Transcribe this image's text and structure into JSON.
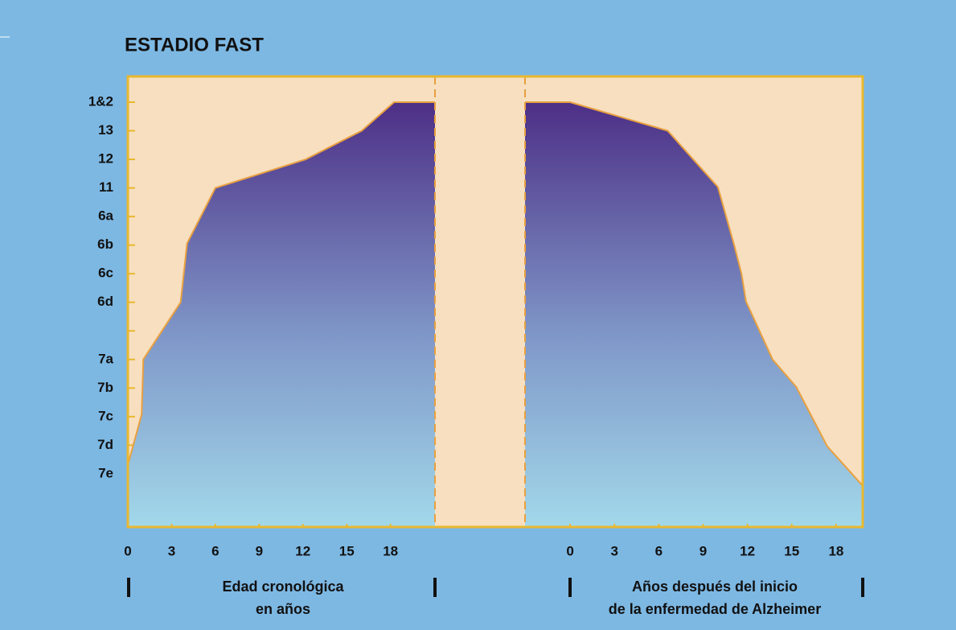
{
  "chart_data": [
    {
      "type": "area",
      "title": "ESTADIO FAST",
      "x": [
        0,
        0.95,
        1.06,
        3.62,
        4.06,
        6,
        12.19,
        16.03,
        18.25,
        21.05
      ],
      "values": [
        1.31,
        3.08,
        5,
        7,
        9.06,
        11,
        12,
        13,
        14,
        14
      ],
      "xlim": [
        0,
        21.05
      ],
      "xticks": [
        0,
        3,
        6,
        9,
        12,
        15,
        18
      ],
      "ylim": [
        -0.86,
        14.9
      ],
      "yticks": [
        {
          "value": 14,
          "label": "1&2"
        },
        13,
        12,
        11,
        {
          "value": 10,
          "label": "6a"
        },
        {
          "value": 9,
          "label": "6b"
        },
        {
          "value": 8,
          "label": "6c"
        },
        {
          "value": 7,
          "label": "6d"
        },
        {
          "value": 6,
          "label": null
        },
        {
          "value": 5,
          "label": "7a"
        },
        {
          "value": 4,
          "label": "7b"
        },
        {
          "value": 3,
          "label": "7c"
        },
        {
          "value": 2,
          "label": "7d"
        },
        {
          "value": 1,
          "label": "7e"
        }
      ],
      "xlabel": [
        "Edad cronológica",
        "en años"
      ],
      "color": "#e8a040"
    },
    {
      "type": "area",
      "x": [
        -3.05,
        0,
        6.6,
        10,
        11.1,
        11.6,
        11.9,
        13.7,
        15.3,
        17.4,
        19.8
      ],
      "values": [
        14,
        14,
        13,
        11.03,
        9,
        7.99,
        7.03,
        5,
        4.04,
        1.96,
        0.58
      ],
      "xlim": [
        -3.05,
        19.8
      ],
      "xticks": [
        0,
        3,
        6,
        9,
        12,
        15,
        18
      ],
      "ylim": [
        -0.86,
        14.9
      ],
      "xlabel": [
        "Años después del inicio",
        "de la enfermedad de Alzheimer"
      ],
      "color": "#e8a040"
    }
  ]
}
